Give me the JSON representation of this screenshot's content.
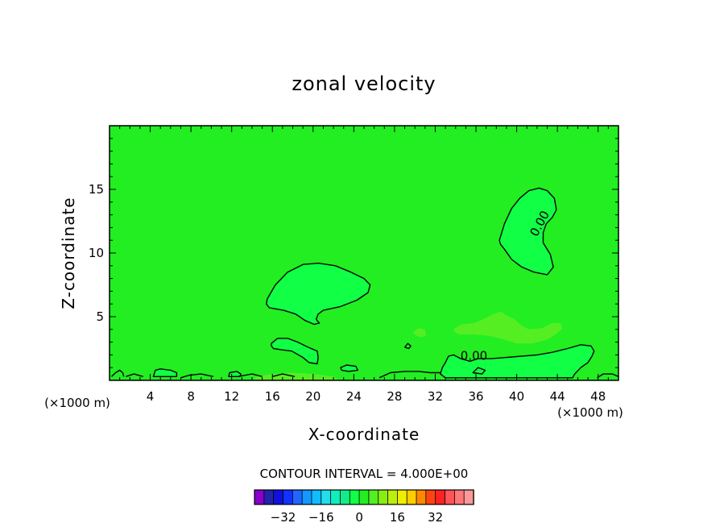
{
  "chart_data": {
    "type": "contour",
    "title": "zonal velocity",
    "xlabel": "X-coordinate",
    "ylabel": "Z-coordinate",
    "x_unit_left": "(×1000 m)",
    "x_unit_right": "(×1000 m)",
    "xlim": [
      0,
      50
    ],
    "ylim": [
      0,
      20
    ],
    "x_ticks": [
      4,
      8,
      12,
      16,
      20,
      24,
      28,
      32,
      36,
      40,
      44,
      48
    ],
    "y_ticks": [
      5,
      10,
      15
    ],
    "contour_interval_text": "CONTOUR INTERVAL = 4.000E+00",
    "contour_labels": [
      {
        "text": "0.00",
        "x": 42.3,
        "y": 12.3,
        "angle": -62
      },
      {
        "text": "0.00",
        "x": 35.8,
        "y": 1.9,
        "angle": 0
      }
    ],
    "background_color": "#22ee22",
    "regions": [
      {
        "name": "upper-right-positive",
        "color": "#11ff44",
        "outline": true,
        "points": [
          [
            38.3,
            11
          ],
          [
            38.8,
            12.3
          ],
          [
            39.5,
            13.5
          ],
          [
            40.3,
            14.3
          ],
          [
            41.2,
            14.9
          ],
          [
            42.2,
            15.1
          ],
          [
            43,
            14.9
          ],
          [
            43.7,
            14.3
          ],
          [
            43.9,
            13.4
          ],
          [
            43.5,
            12.8
          ],
          [
            42.9,
            12.3
          ],
          [
            42.6,
            11.6
          ],
          [
            42.6,
            10.8
          ],
          [
            43.3,
            9.9
          ],
          [
            43.6,
            8.9
          ],
          [
            43,
            8.3
          ],
          [
            41.7,
            8.5
          ],
          [
            40.5,
            8.9
          ],
          [
            39.5,
            9.5
          ],
          [
            38.8,
            10.3
          ],
          [
            38.4,
            10.7
          ]
        ]
      },
      {
        "name": "mid-positive",
        "color": "#11ff44",
        "outline": true,
        "points": [
          [
            15.5,
            6.4
          ],
          [
            16.3,
            7.5
          ],
          [
            17.5,
            8.5
          ],
          [
            19,
            9.1
          ],
          [
            20.5,
            9.2
          ],
          [
            22.2,
            9
          ],
          [
            23.7,
            8.5
          ],
          [
            25,
            8
          ],
          [
            25.6,
            7.5
          ],
          [
            25.4,
            6.9
          ],
          [
            24.3,
            6.3
          ],
          [
            22.7,
            5.8
          ],
          [
            21,
            5.5
          ],
          [
            20.5,
            5.2
          ],
          [
            20.3,
            4.8
          ],
          [
            20.6,
            4.5
          ],
          [
            20.1,
            4.4
          ],
          [
            19.2,
            4.7
          ],
          [
            18.3,
            5.2
          ],
          [
            17.1,
            5.5
          ],
          [
            15.7,
            5.7
          ],
          [
            15.4,
            6
          ]
        ]
      },
      {
        "name": "lower-left-positive",
        "color": "#11ff44",
        "outline": true,
        "points": [
          [
            15.9,
            2.9
          ],
          [
            16.5,
            3.3
          ],
          [
            17.5,
            3.3
          ],
          [
            18.5,
            3
          ],
          [
            19.5,
            2.6
          ],
          [
            20.4,
            2.3
          ],
          [
            20.5,
            1.8
          ],
          [
            20.4,
            1.3
          ],
          [
            19.6,
            1.4
          ],
          [
            19,
            1.8
          ],
          [
            17.9,
            2.3
          ],
          [
            16.9,
            2.4
          ],
          [
            16.1,
            2.5
          ],
          [
            15.9,
            2.7
          ]
        ]
      },
      {
        "name": "lower-right-positive",
        "color": "#11ff44",
        "outline": true,
        "points": [
          [
            32.7,
            1
          ],
          [
            33,
            1.4
          ],
          [
            33.3,
            1.9
          ],
          [
            33.8,
            2
          ],
          [
            34.5,
            1.7
          ],
          [
            35.4,
            1.5
          ],
          [
            36.2,
            1.7
          ],
          [
            37.5,
            1.7
          ],
          [
            39,
            1.8
          ],
          [
            40.5,
            1.9
          ],
          [
            42,
            2
          ],
          [
            43.5,
            2.2
          ],
          [
            45,
            2.5
          ],
          [
            46.3,
            2.8
          ],
          [
            47.3,
            2.7
          ],
          [
            47.6,
            2.3
          ],
          [
            47.4,
            1.9
          ],
          [
            47,
            1.4
          ],
          [
            46.3,
            1
          ],
          [
            45.7,
            0.5
          ],
          [
            45.5,
            0.2
          ],
          [
            33,
            0.2
          ],
          [
            32.5,
            0.5
          ]
        ]
      },
      {
        "name": "positive-8-patch",
        "color": "#55ee22",
        "outline": false,
        "points": [
          [
            33.8,
            4
          ],
          [
            34.5,
            4.4
          ],
          [
            35.8,
            4.5
          ],
          [
            36.7,
            4.8
          ],
          [
            37.7,
            5.2
          ],
          [
            38.5,
            5.4
          ],
          [
            39,
            5.1
          ],
          [
            39.8,
            4.8
          ],
          [
            40.5,
            4.3
          ],
          [
            41.2,
            4
          ],
          [
            42.5,
            4.1
          ],
          [
            43.5,
            4.5
          ],
          [
            44.3,
            4.5
          ],
          [
            44.5,
            4.1
          ],
          [
            44,
            3.7
          ],
          [
            43,
            3.2
          ],
          [
            41.6,
            2.9
          ],
          [
            40,
            2.9
          ],
          [
            38.8,
            3.2
          ],
          [
            37.3,
            3.5
          ],
          [
            35.8,
            3.6
          ],
          [
            34.4,
            3.6
          ],
          [
            33.9,
            3.8
          ]
        ]
      },
      {
        "name": "small-positive-30",
        "color": "#55ee22",
        "outline": false,
        "points": [
          [
            29.8,
            3.8
          ],
          [
            30.4,
            4.1
          ],
          [
            31,
            4
          ],
          [
            31.1,
            3.5
          ],
          [
            30.6,
            3.4
          ],
          [
            30.1,
            3.5
          ]
        ]
      },
      {
        "name": "bottom-patch-a",
        "color": "#11ff44",
        "outline": true,
        "points": [
          [
            4.3,
            0.3
          ],
          [
            4.5,
            0.8
          ],
          [
            5,
            0.9
          ],
          [
            6,
            0.8
          ],
          [
            6.6,
            0.6
          ],
          [
            6.6,
            0.3
          ]
        ]
      },
      {
        "name": "bottom-patch-b",
        "color": "#11ff44",
        "outline": true,
        "points": [
          [
            11.7,
            0.3
          ],
          [
            11.8,
            0.6
          ],
          [
            12.5,
            0.7
          ],
          [
            12.9,
            0.5
          ],
          [
            12.8,
            0.3
          ]
        ]
      },
      {
        "name": "bottom-patch-c",
        "color": "#11ff44",
        "outline": true,
        "points": [
          [
            22.7,
            1
          ],
          [
            23.3,
            1.2
          ],
          [
            24.2,
            1.1
          ],
          [
            24.4,
            0.8
          ],
          [
            23.5,
            0.7
          ],
          [
            22.8,
            0.8
          ]
        ]
      },
      {
        "name": "bottom-patch-d",
        "color": "#11ff44",
        "outline": true,
        "points": [
          [
            35.7,
            0.6
          ],
          [
            36.2,
            1
          ],
          [
            36.9,
            0.8
          ],
          [
            36.6,
            0.5
          ]
        ]
      },
      {
        "name": "bottom-strip",
        "color": "#55ee22",
        "outline": false,
        "points": [
          [
            14,
            0
          ],
          [
            14.5,
            0.3
          ],
          [
            16,
            0.5
          ],
          [
            18,
            0.6
          ],
          [
            20,
            0.5
          ],
          [
            22,
            0.3
          ],
          [
            22.5,
            0
          ],
          [
            14,
            0
          ]
        ]
      }
    ],
    "lines": [
      [
        [
          0.2,
          0.3
        ],
        [
          0.6,
          0.6
        ],
        [
          1,
          0.8
        ],
        [
          1.3,
          0.6
        ],
        [
          1.4,
          0.3
        ]
      ],
      [
        [
          1.6,
          0.3
        ],
        [
          2.4,
          0.5
        ],
        [
          3.3,
          0.3
        ]
      ],
      [
        [
          7,
          0.2
        ],
        [
          7.8,
          0.4
        ],
        [
          9,
          0.5
        ],
        [
          10.2,
          0.3
        ]
      ],
      [
        [
          12.6,
          0.3
        ],
        [
          14,
          0.5
        ],
        [
          15,
          0.3
        ]
      ],
      [
        [
          16,
          0.3
        ],
        [
          17,
          0.5
        ],
        [
          18.2,
          0.3
        ]
      ],
      [
        [
          26.5,
          0.2
        ],
        [
          27.6,
          0.6
        ],
        [
          29,
          0.7
        ],
        [
          30.4,
          0.7
        ],
        [
          31.5,
          0.6
        ],
        [
          32.5,
          0.6
        ]
      ],
      [
        [
          29,
          2.6
        ],
        [
          29.3,
          2.9
        ],
        [
          29.6,
          2.7
        ],
        [
          29.4,
          2.5
        ],
        [
          29,
          2.6
        ]
      ],
      [
        [
          47.9,
          0.2
        ],
        [
          48.5,
          0.5
        ],
        [
          49.4,
          0.5
        ],
        [
          50,
          0.3
        ]
      ]
    ],
    "colorbar": {
      "colors": [
        "#8800cc",
        "#2222aa",
        "#1111dd",
        "#1133ff",
        "#2266ff",
        "#1199ff",
        "#11bbff",
        "#22ddee",
        "#11eebb",
        "#11ee88",
        "#11ff44",
        "#22ee22",
        "#55ee22",
        "#88ee11",
        "#bbee11",
        "#eeee00",
        "#ffcc00",
        "#ff8800",
        "#ff4411",
        "#ff2222",
        "#ff5555",
        "#ff7777",
        "#ff9999"
      ],
      "tick_labels": [
        "−32",
        "−16",
        "0",
        "16",
        "32"
      ],
      "tick_values": [
        -32,
        -16,
        0,
        16,
        32
      ],
      "vmin": -44,
      "vmax": 48
    }
  }
}
